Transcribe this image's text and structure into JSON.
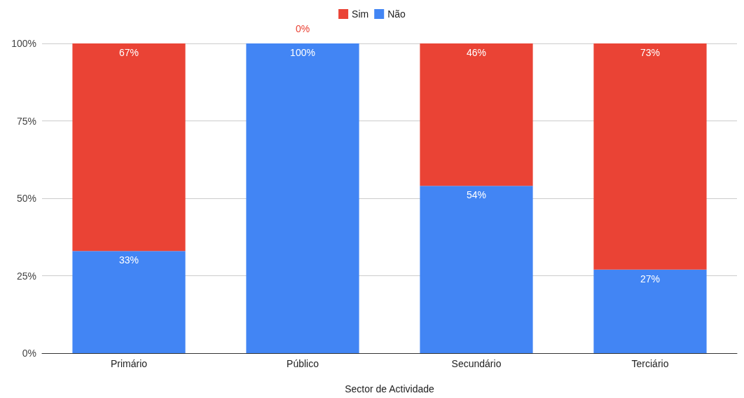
{
  "chart_data": {
    "type": "bar",
    "stacked": true,
    "xlabel": "Sector de Actividade",
    "categories": [
      "Primário",
      "Público",
      "Secundário",
      "Terciário"
    ],
    "series": [
      {
        "name": "Não",
        "color": "#4285f4",
        "values": [
          33,
          100,
          54,
          27
        ],
        "value_labels": [
          "33%",
          "100%",
          "54%",
          "27%"
        ]
      },
      {
        "name": "Sim",
        "color": "#ea4335",
        "values": [
          67,
          0,
          46,
          73
        ],
        "value_labels": [
          "67%",
          "0%",
          "46%",
          "73%"
        ]
      }
    ],
    "ylim": [
      0,
      100
    ],
    "yticks": [
      {
        "value": 0,
        "label": "0%"
      },
      {
        "value": 25,
        "label": "25%"
      },
      {
        "value": 50,
        "label": "50%"
      },
      {
        "value": 75,
        "label": "75%"
      },
      {
        "value": 100,
        "label": "100%"
      }
    ],
    "grid": "y",
    "legend": "top"
  }
}
